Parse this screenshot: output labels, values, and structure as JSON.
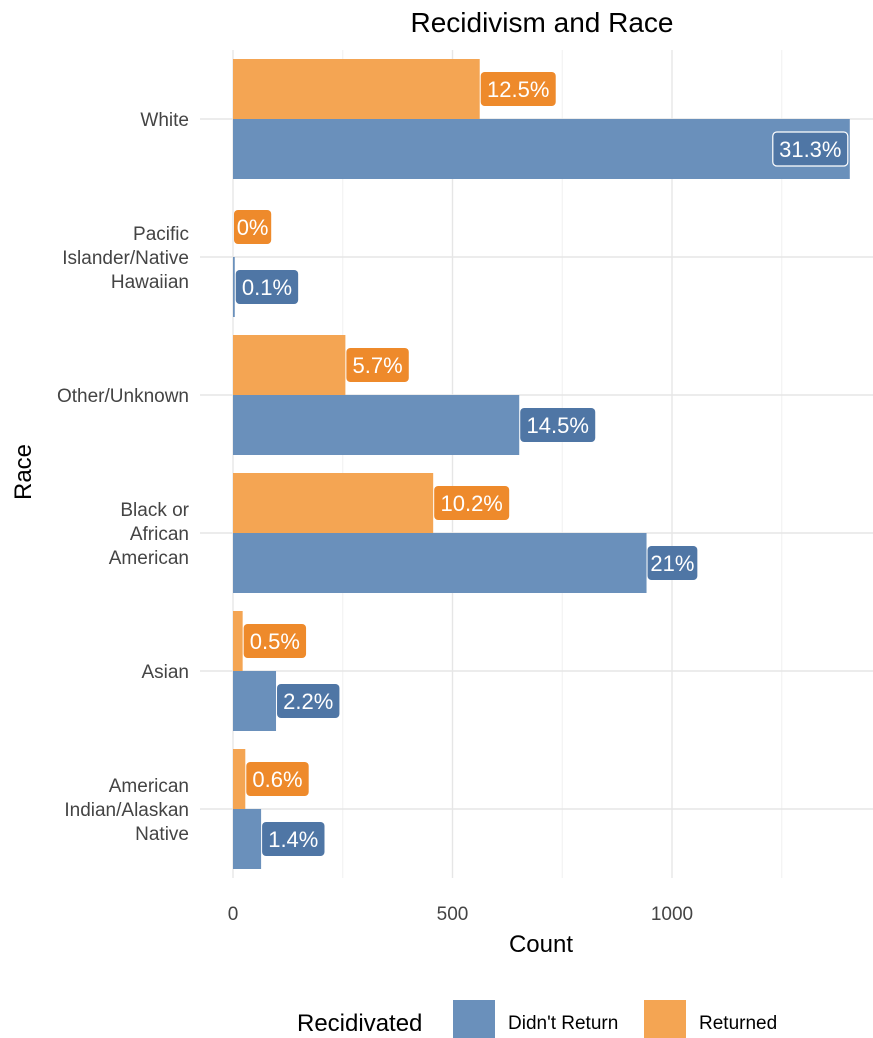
{
  "chart_data": {
    "type": "bar",
    "orientation": "horizontal",
    "title": "Recidivism and Race",
    "xlabel": "Count",
    "ylabel": "Race",
    "xlim": [
      0,
      1410
    ],
    "x_ticks": [
      0,
      500,
      1000
    ],
    "grid": true,
    "categories": [
      "American Indian/Alaskan Native",
      "Asian",
      "Black or African American",
      "Other/Unknown",
      "Pacific Islander/Native Hawaiian",
      "White"
    ],
    "category_tick_lines": [
      [
        "American",
        "Indian/Alaskan",
        "Native"
      ],
      [
        "Asian"
      ],
      [
        "Black or",
        "African",
        "American"
      ],
      [
        "Other/Unknown"
      ],
      [
        "Pacific",
        "Islander/Native",
        "Hawaiian"
      ],
      [
        "White"
      ]
    ],
    "series": [
      {
        "name": "Didn't Return",
        "color": "#6a90bb",
        "label_color": "#4f76a5",
        "values": [
          64,
          98,
          942,
          652,
          4,
          1405
        ],
        "labels": [
          "1.4%",
          "2.2%",
          "21%",
          "14.5%",
          "0.1%",
          "31.3%"
        ]
      },
      {
        "name": "Returned",
        "color": "#f4a553",
        "label_color": "#ee8a2b",
        "values": [
          28,
          22,
          456,
          256,
          0,
          562
        ],
        "labels": [
          "0.6%",
          "0.5%",
          "10.2%",
          "5.7%",
          "0%",
          "12.5%"
        ]
      }
    ],
    "legend": {
      "title": "Recidivated",
      "position": "bottom",
      "items": [
        "Didn't Return",
        "Returned"
      ]
    }
  }
}
